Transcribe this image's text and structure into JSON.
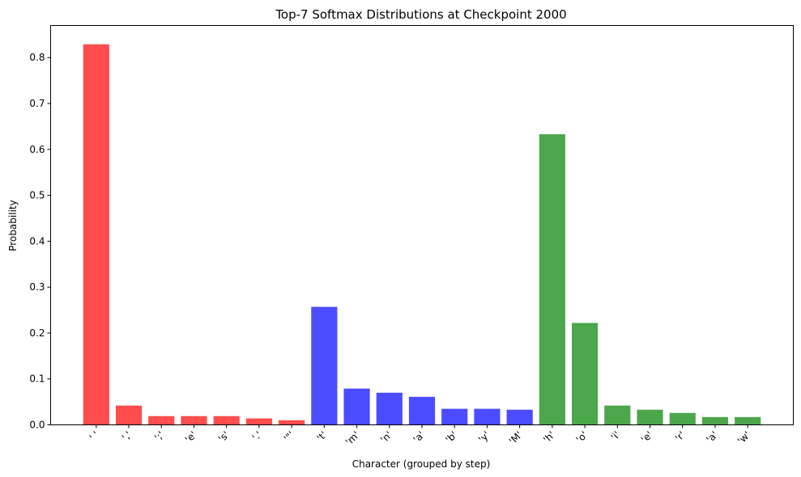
{
  "chart_data": {
    "type": "bar",
    "title": "Top-7 Softmax Distributions at Checkpoint 2000",
    "xlabel": "Character (grouped by step)",
    "ylabel": "Probability",
    "ylim": [
      0,
      0.87
    ],
    "yticks": [
      0.0,
      0.1,
      0.2,
      0.3,
      0.4,
      0.5,
      0.6,
      0.7,
      0.8
    ],
    "ytick_labels": [
      "0.0",
      "0.1",
      "0.2",
      "0.3",
      "0.4",
      "0.5",
      "0.6",
      "0.7",
      "0.8"
    ],
    "grid": false,
    "categories": [
      "' '",
      "','",
      "';'",
      "'e'",
      "'s'",
      "'.'",
      "'\"'",
      "'t'",
      "'m'",
      "'n'",
      "'a'",
      "'b'",
      "'y'",
      "'M'",
      "'h'",
      "'o'",
      "'i'",
      "'e'",
      "'r'",
      "'a'",
      "'w'"
    ],
    "values": [
      0.829,
      0.042,
      0.019,
      0.019,
      0.019,
      0.014,
      0.01,
      0.257,
      0.079,
      0.07,
      0.061,
      0.035,
      0.035,
      0.033,
      0.633,
      0.222,
      0.042,
      0.033,
      0.026,
      0.017,
      0.017
    ],
    "groups": [
      0,
      0,
      0,
      0,
      0,
      0,
      0,
      1,
      1,
      1,
      1,
      1,
      1,
      1,
      2,
      2,
      2,
      2,
      2,
      2,
      2
    ],
    "group_colors": [
      "#ff4c4c",
      "#4b4bff",
      "#4ca64c"
    ]
  }
}
